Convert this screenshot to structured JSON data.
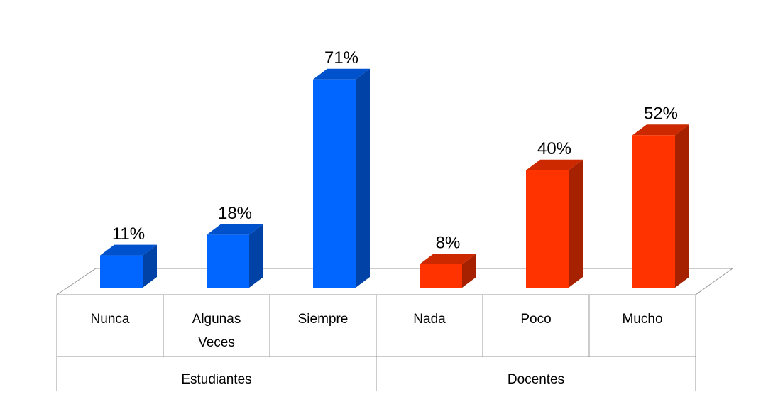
{
  "chart_data": {
    "type": "bar3d",
    "groups": [
      {
        "name": "Estudiantes",
        "categories": [
          "Nunca",
          "Algunas Veces",
          "Siempre"
        ]
      },
      {
        "name": "Docentes",
        "categories": [
          "Nada",
          "Poco",
          "Mucho"
        ]
      }
    ],
    "series": [
      {
        "name": "Estudiantes",
        "color": "#0066ff",
        "values": [
          11,
          18,
          71
        ],
        "value_labels": [
          "11%",
          "18%",
          "71%"
        ]
      },
      {
        "name": "Docentes",
        "color": "#ff3300",
        "values": [
          8,
          40,
          52
        ],
        "value_labels": [
          "8%",
          "40%",
          "52%"
        ]
      }
    ]
  }
}
